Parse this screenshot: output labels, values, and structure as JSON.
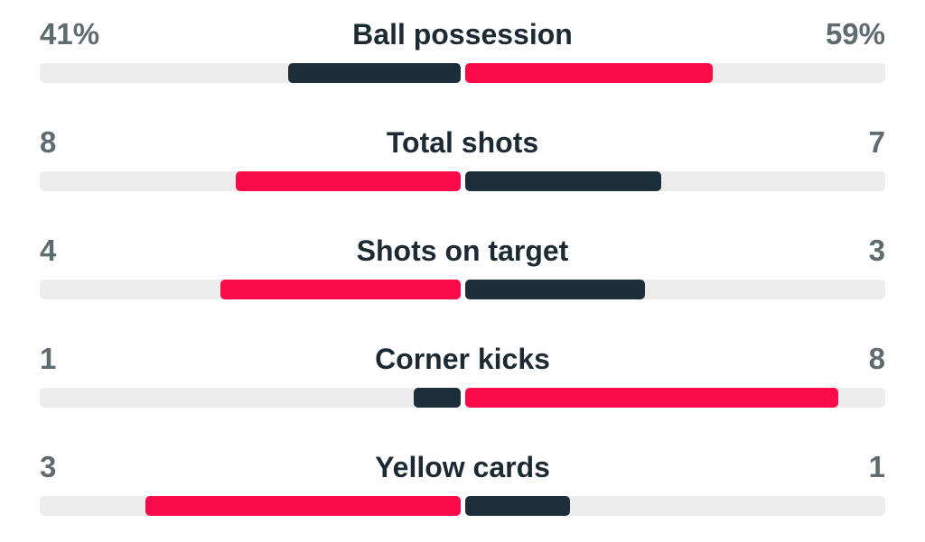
{
  "colors": {
    "home": "#1c2e3a",
    "away": "#fb0a4a",
    "leader": "#fb0a4a",
    "trailer": "#1c2e3a",
    "track": "#ececec"
  },
  "stats": [
    {
      "label": "Ball possession",
      "home_display": "41%",
      "away_display": "59%",
      "home_share": 0.41,
      "away_share": 0.59,
      "max": 1.0
    },
    {
      "label": "Total shots",
      "home_display": "8",
      "away_display": "7",
      "home_share": 8,
      "away_share": 7,
      "max": 15
    },
    {
      "label": "Shots on target",
      "home_display": "4",
      "away_display": "3",
      "home_share": 4,
      "away_share": 3,
      "max": 7
    },
    {
      "label": "Corner kicks",
      "home_display": "1",
      "away_display": "8",
      "home_share": 1,
      "away_share": 8,
      "max": 9
    },
    {
      "label": "Yellow cards",
      "home_display": "3",
      "away_display": "1",
      "home_share": 3,
      "away_share": 1,
      "max": 4
    }
  ]
}
